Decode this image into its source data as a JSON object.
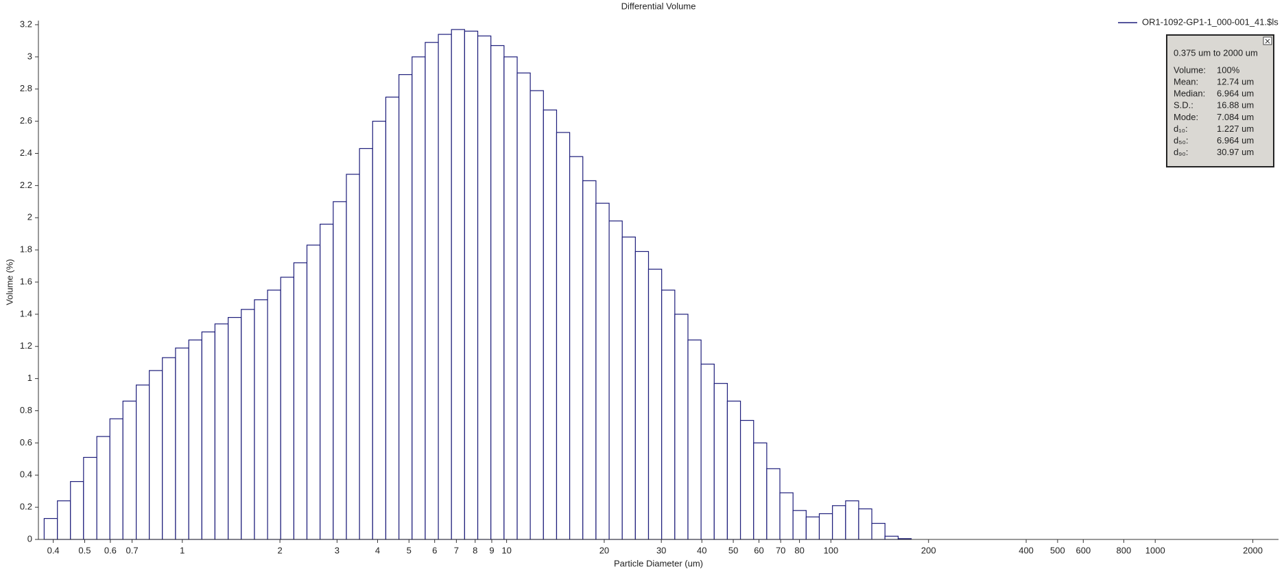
{
  "chart_data": {
    "type": "histogram",
    "title": "Differential Volume",
    "x_label": "Particle Diameter (um)",
    "y_label": "Volume (%)",
    "log_x": true,
    "color": "#1c1c7a",
    "legend_position": "top-right",
    "series_name": "OR1-1092-GP1-1_000-001_41.$ls",
    "bins": [
      0.375,
      0.412,
      0.452,
      0.496,
      0.545,
      0.598,
      0.656,
      0.721,
      0.791,
      0.868,
      0.953,
      1.047,
      1.149,
      1.261,
      1.385,
      1.52,
      1.669,
      1.832,
      2.011,
      2.208,
      2.423,
      2.66,
      2.92,
      3.206,
      3.519,
      3.863,
      4.241,
      4.656,
      5.111,
      5.611,
      6.159,
      6.761,
      7.422,
      8.148,
      8.944,
      9.819,
      10.78,
      11.83,
      12.99,
      14.26,
      15.65,
      17.18,
      18.86,
      20.71,
      22.73,
      24.95,
      27.39,
      30.07,
      33.01,
      36.24,
      39.78,
      43.67,
      47.94,
      52.62,
      57.77,
      63.41,
      69.61,
      76.42,
      83.89,
      92.09,
      101.1,
      111.0,
      121.8,
      133.7,
      146.8,
      161.2,
      176.9,
      194.2,
      213.2,
      234.1,
      256.9,
      282.1,
      309.6,
      339.9,
      373.1,
      409.6,
      449.7,
      493.6,
      541.9,
      594.9,
      653.0,
      716.9,
      786.9,
      863.9,
      948.3,
      1041,
      1143,
      1255,
      1377,
      1512,
      1660,
      1822,
      2000
    ],
    "values": [
      0.13,
      0.24,
      0.36,
      0.51,
      0.64,
      0.75,
      0.86,
      0.96,
      1.05,
      1.13,
      1.19,
      1.24,
      1.29,
      1.34,
      1.38,
      1.43,
      1.49,
      1.55,
      1.63,
      1.72,
      1.83,
      1.96,
      2.1,
      2.27,
      2.43,
      2.6,
      2.75,
      2.89,
      3.0,
      3.09,
      3.14,
      3.17,
      3.16,
      3.13,
      3.07,
      3.0,
      2.9,
      2.79,
      2.67,
      2.53,
      2.38,
      2.23,
      2.09,
      1.98,
      1.88,
      1.79,
      1.68,
      1.55,
      1.4,
      1.24,
      1.09,
      0.97,
      0.86,
      0.74,
      0.6,
      0.44,
      0.29,
      0.18,
      0.14,
      0.16,
      0.21,
      0.24,
      0.19,
      0.1,
      0.02,
      0.005,
      0,
      0,
      0,
      0,
      0,
      0,
      0,
      0,
      0,
      0,
      0,
      0,
      0,
      0,
      0,
      0,
      0,
      0,
      0,
      0,
      0,
      0,
      0,
      0,
      0,
      0
    ],
    "xlim": [
      0.36,
      2400
    ],
    "xticks": [
      0.4,
      0.5,
      0.6,
      0.7,
      1,
      2,
      3,
      4,
      5,
      6,
      7,
      8,
      9,
      10,
      20,
      30,
      40,
      50,
      60,
      70,
      80,
      100,
      200,
      400,
      500,
      600,
      800,
      1000,
      2000
    ],
    "ylim": [
      0,
      3.2
    ],
    "yticks": [
      0,
      0.2,
      0.4,
      0.6,
      0.8,
      1,
      1.2,
      1.4,
      1.6,
      1.8,
      2,
      2.2,
      2.4,
      2.6,
      2.8,
      3,
      3.2
    ],
    "stats_box": {
      "range": "0.375 um to 2000 um",
      "rows": [
        [
          "Volume:",
          "100%"
        ],
        [
          "Mean:",
          "12.74 um"
        ],
        [
          "Median:",
          "6.964 um"
        ],
        [
          "S.D.:",
          "16.88 um"
        ],
        [
          "Mode:",
          "7.084 um"
        ],
        [
          "d₁₀:",
          "1.227 um"
        ],
        [
          "d₅₀:",
          "6.964 um"
        ],
        [
          "d₉₀:",
          "30.97 um"
        ]
      ]
    }
  }
}
